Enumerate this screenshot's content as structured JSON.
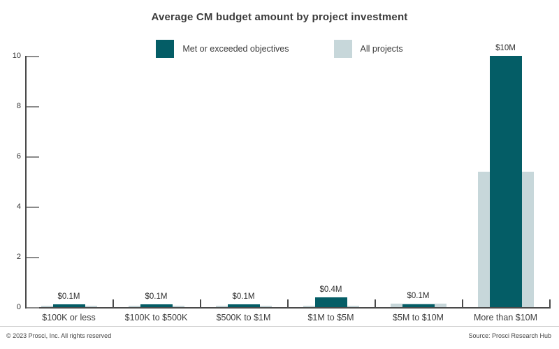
{
  "title": "Average CM budget amount by project investment",
  "legend": {
    "items": [
      {
        "label": "Met or exceeded objectives",
        "color": "#045d66"
      },
      {
        "label": "All projects",
        "color": "#c7d7da"
      }
    ]
  },
  "footer": {
    "left": "© 2023 Prosci, Inc. All rights reserved",
    "right": "Source: Prosci Research Hub"
  },
  "chart_data": {
    "type": "bar",
    "title": "Average CM budget amount by project investment",
    "categories": [
      "$100K or less",
      "$100K to $500K",
      "$500K to $1M",
      "$1M to $5M",
      "$5M to $10M",
      "More than $10M"
    ],
    "series": [
      {
        "name": "Met or exceeded objectives",
        "color": "#045d66",
        "values": [
          0.1,
          0.1,
          0.1,
          0.4,
          0.1,
          10
        ],
        "data_labels": [
          "$0.1M",
          "$0.1M",
          "$0.1M",
          "$0.4M",
          "$0.1M",
          "$10M"
        ]
      },
      {
        "name": "All projects",
        "color": "#c7d7da",
        "values": [
          0.05,
          0.05,
          0.05,
          0.05,
          0.15,
          5.4
        ],
        "data_labels": [
          "",
          "",
          "",
          "",
          "",
          ""
        ]
      }
    ],
    "xlabel": "",
    "ylabel": "",
    "ylim": [
      0,
      10
    ],
    "yticks": [
      0,
      2,
      4,
      6,
      8,
      10
    ],
    "grid": false,
    "legend_position": "top",
    "bar_layout": "overlapped-centered"
  }
}
